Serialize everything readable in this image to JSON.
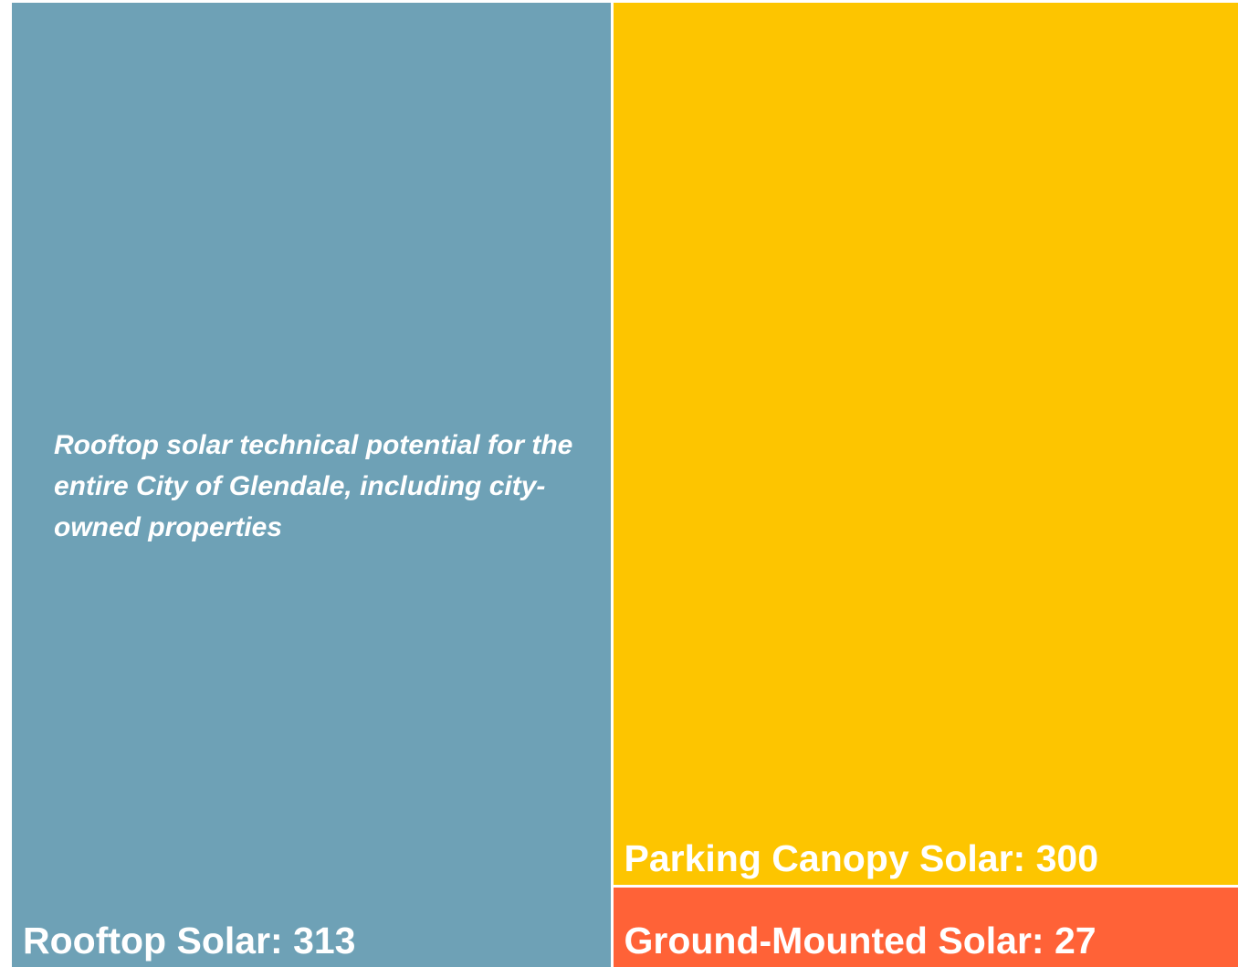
{
  "chart_data": {
    "type": "treemap",
    "title": "",
    "series": [
      {
        "name": "Rooftop Solar",
        "value": 313,
        "label": "Rooftop Solar: 313",
        "color": "#6ea1b6",
        "annotation": "Rooftop solar technical potential for the entire City of Glendale, including city-owned properties"
      },
      {
        "name": "Parking Canopy Solar",
        "value": 300,
        "label": "Parking Canopy Solar: 300",
        "color": "#fdc500"
      },
      {
        "name": "Ground-Mounted Solar",
        "value": 27,
        "label": "Ground-Mounted Solar: 27",
        "color": "#ff6237"
      }
    ]
  }
}
